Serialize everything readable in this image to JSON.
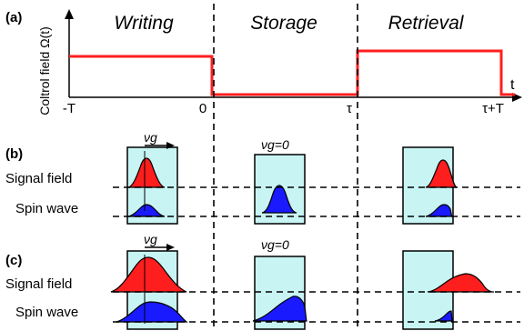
{
  "panel_a": {
    "label": "(a)",
    "phases": [
      "Writing",
      "Storage",
      "Retrieval"
    ],
    "ylabel": "Coltrol field Ω(t)",
    "t_axis_label": "t",
    "ticks": [
      "-T",
      "0",
      "τ",
      "τ+T"
    ],
    "control_color": "#ff1e1e"
  },
  "panel_b": {
    "label": "(b)",
    "row_labels": [
      "Signal field",
      "Spin wave"
    ],
    "velocity_label": "νg",
    "storage_velocity": "νg=0"
  },
  "panel_c": {
    "label": "(c)",
    "row_labels": [
      "Signal field",
      "Spin wave"
    ],
    "velocity_label": "νg",
    "storage_velocity": "νg=0"
  },
  "colors": {
    "signal_field": "#ff1e1e",
    "spin_wave": "#1a1aff",
    "medium": "#c8f4f4"
  }
}
